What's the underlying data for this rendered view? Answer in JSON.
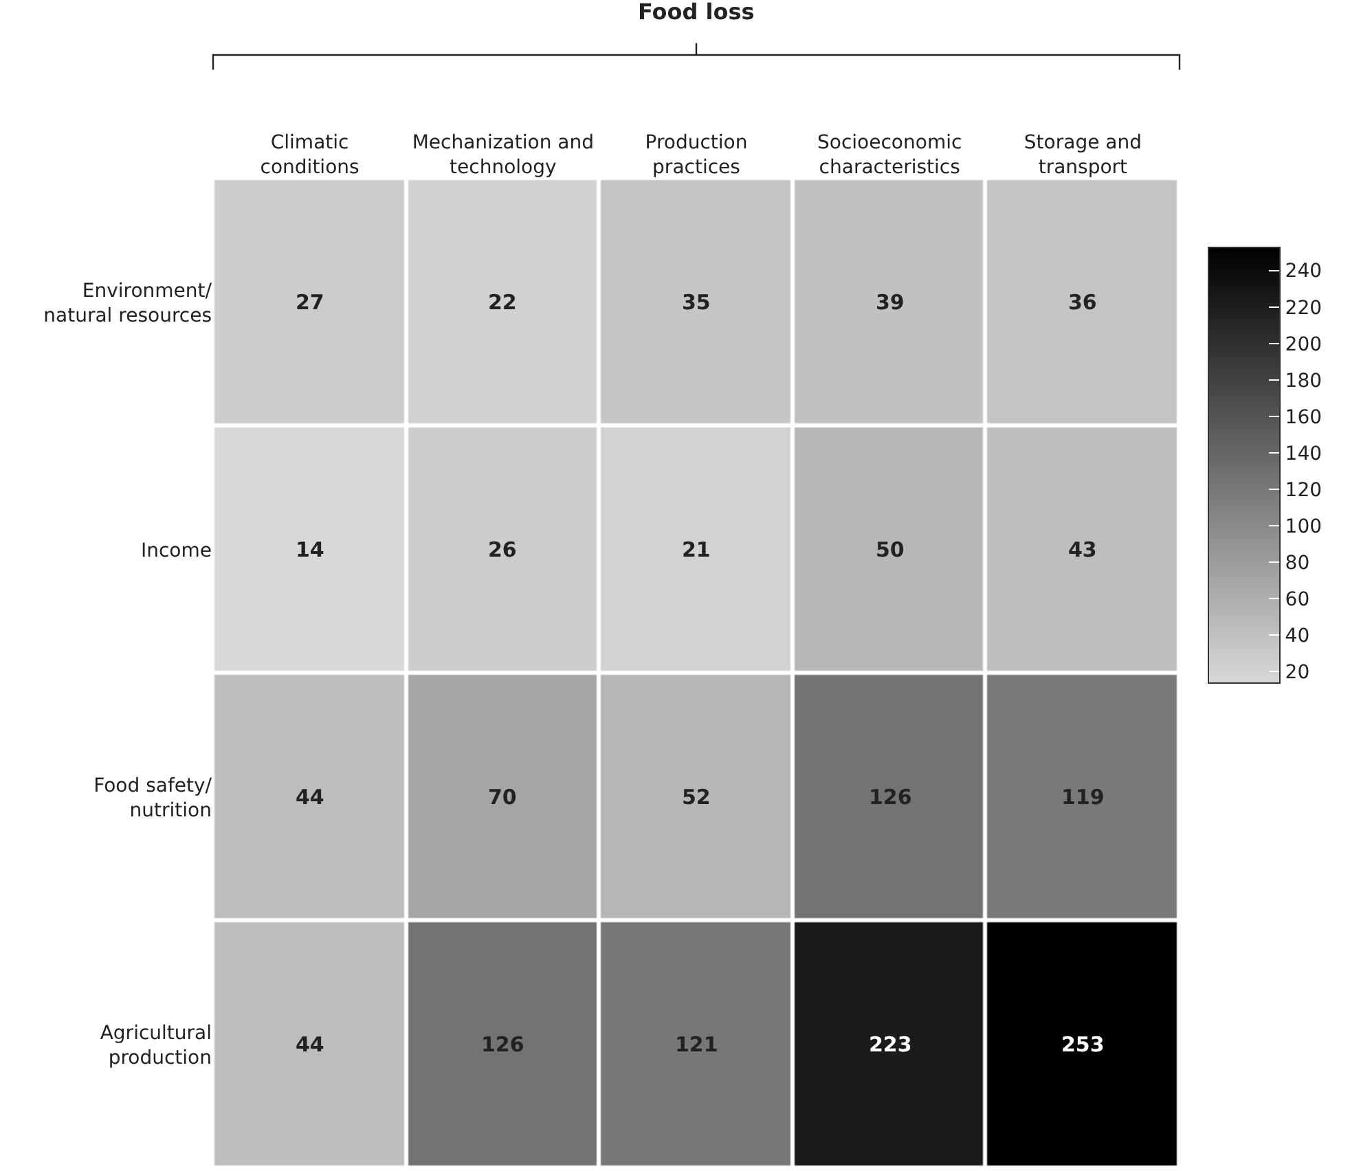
{
  "chart_data": {
    "type": "heatmap",
    "xlabel": "Food loss",
    "categories": [
      "Climatic\nconditions",
      "Mechanization and\ntechnology",
      "Production\npractices",
      "Socioeconomic\ncharacteristics",
      "Storage and\ntransport"
    ],
    "y_categories": [
      "Environment/\nnatural resources",
      "Income",
      "Food safety/\nnutrition",
      "Agricultural\nproduction"
    ],
    "cells": [
      [
        27,
        22,
        35,
        39,
        36
      ],
      [
        14,
        26,
        21,
        50,
        43
      ],
      [
        44,
        70,
        52,
        126,
        119
      ],
      [
        44,
        126,
        121,
        223,
        253
      ]
    ],
    "data_labels": true,
    "colors": [
      "#d8d8d8",
      "#000000"
    ],
    "clim": [
      14,
      253
    ],
    "cticks": [
      20,
      40,
      60,
      80,
      100,
      120,
      140,
      160,
      180,
      200,
      220,
      240
    ]
  }
}
